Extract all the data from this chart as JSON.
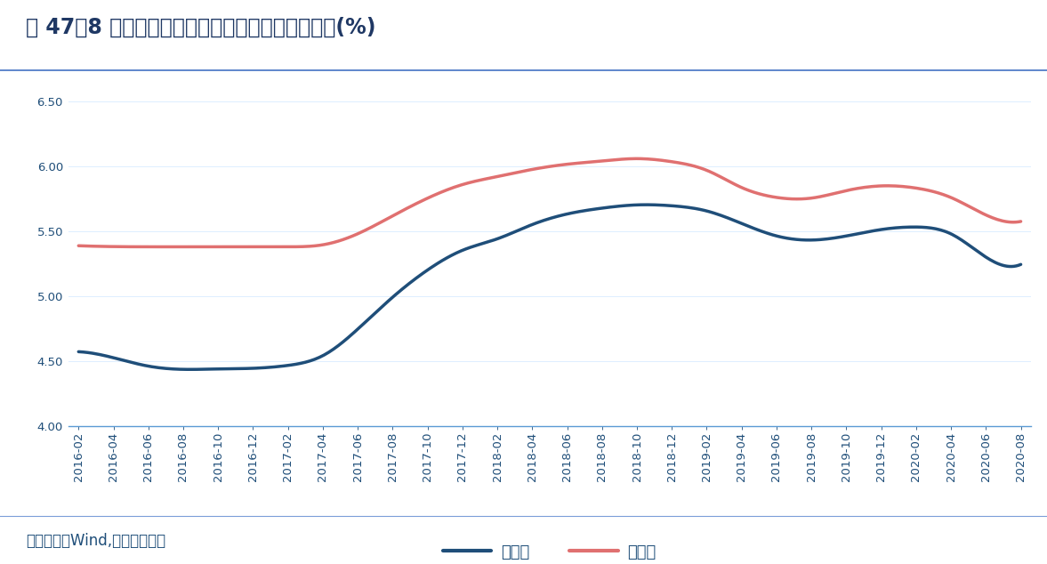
{
  "title": "图 47：8 月首套和二套房贷利率连续第九个月下行(%)",
  "source": "资料来源：Wind,申万宏源研究",
  "x_labels": [
    "2016-02",
    "2016-04",
    "2016-06",
    "2016-08",
    "2016-10",
    "2016-12",
    "2017-02",
    "2017-04",
    "2017-06",
    "2017-08",
    "2017-10",
    "2017-12",
    "2018-02",
    "2018-04",
    "2018-06",
    "2018-08",
    "2018-10",
    "2018-12",
    "2019-02",
    "2019-04",
    "2019-06",
    "2019-08",
    "2019-10",
    "2019-12",
    "2020-02",
    "2020-04",
    "2020-06",
    "2020-08"
  ],
  "series1_name": "首套房",
  "series1_color": "#1f4e79",
  "series2_name": "二套房",
  "series2_color": "#e07070",
  "series1_values": [
    4.58,
    4.53,
    4.45,
    4.43,
    4.44,
    4.44,
    4.46,
    4.51,
    4.74,
    5.0,
    5.21,
    5.37,
    5.43,
    5.56,
    5.64,
    5.68,
    5.71,
    5.7,
    5.67,
    5.56,
    5.45,
    5.42,
    5.46,
    5.52,
    5.54,
    5.52,
    5.26,
    5.24
  ],
  "series2_values": [
    5.39,
    5.38,
    5.38,
    5.38,
    5.38,
    5.38,
    5.38,
    5.38,
    5.47,
    5.62,
    5.76,
    5.87,
    5.92,
    5.98,
    6.02,
    6.04,
    6.07,
    6.04,
    5.99,
    5.82,
    5.75,
    5.74,
    5.82,
    5.86,
    5.84,
    5.78,
    5.6,
    5.57
  ],
  "ylim": [
    4.0,
    6.5
  ],
  "yticks": [
    4.0,
    4.5,
    5.0,
    5.5,
    6.0,
    6.5
  ],
  "line_width": 2.5,
  "title_fontsize": 17,
  "tick_fontsize": 9.5,
  "legend_fontsize": 13,
  "source_fontsize": 12,
  "title_color": "#1f3864",
  "axis_color": "#5b9bd5",
  "tick_color": "#1f4e79",
  "background_color": "#ffffff",
  "plot_bg_color": "#ffffff",
  "grid_color": "#ddeeff",
  "separator_color": "#7b9ed9",
  "title_separator_color": "#4472c4"
}
